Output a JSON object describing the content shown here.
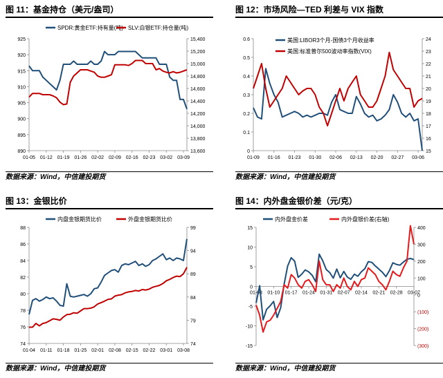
{
  "panels": [
    {
      "title": "图 11：基金持仓（美元/盎司）",
      "source": "数据来源：Wind，中信建投期货"
    },
    {
      "title": "图 12：市场风险—TED 利差与 VIX 指数",
      "source": "数据来源：Wind，中信建投期货"
    },
    {
      "title": "图 13：金银比价",
      "source": "数据来源：Wind，中信建投期货"
    },
    {
      "title": "图 14：内外盘金银价差（元/克）",
      "source": "数据来源：Wind，中信建投期货"
    }
  ],
  "chart_data": [
    {
      "type": "line",
      "title": "",
      "x": [
        "01-05",
        "01-06",
        "01-07",
        "01-08",
        "01-09",
        "01-12",
        "01-13",
        "01-14",
        "01-15",
        "01-16",
        "01-19",
        "01-20",
        "01-21",
        "01-22",
        "01-23",
        "01-26",
        "01-27",
        "01-28",
        "01-29",
        "01-30",
        "02-02",
        "02-03",
        "02-04",
        "02-05",
        "02-06",
        "02-09",
        "02-10",
        "02-11",
        "02-12",
        "02-13",
        "02-16",
        "02-17",
        "02-18",
        "02-19",
        "02-20",
        "02-23",
        "02-24",
        "02-25",
        "02-26",
        "02-27",
        "03-02",
        "03-03",
        "03-04",
        "03-05",
        "03-06",
        "03-09",
        "03-10"
      ],
      "xticks": [
        "01-05",
        "01-12",
        "01-19",
        "01-26",
        "02-02",
        "02-09",
        "02-16",
        "02-23",
        "03-02",
        "03-09"
      ],
      "series": [
        {
          "name": "SPDR:黄金ETF:持有量(吨)",
          "axis": "left",
          "color": "#1f4e79",
          "values": [
            916.5,
            915,
            915,
            915,
            913,
            912,
            911,
            910,
            909,
            912,
            917,
            917,
            917,
            918,
            917,
            917,
            917,
            917,
            918,
            917,
            917,
            918,
            921,
            920,
            920,
            920,
            921,
            921,
            921,
            921,
            921,
            921,
            920,
            919,
            919,
            919,
            919,
            919,
            917,
            917,
            917,
            913,
            912,
            912,
            906,
            906,
            903
          ]
        },
        {
          "name": "SLV:白银ETF:持仓量(吨)",
          "axis": "right",
          "color": "#c00000",
          "values": [
            14460,
            14520,
            14520,
            14520,
            14500,
            14500,
            14500,
            14480,
            14450,
            14380,
            14340,
            14350,
            14700,
            14800,
            14850,
            14900,
            14900,
            14900,
            14880,
            14860,
            14800,
            14780,
            14780,
            14800,
            14820,
            14980,
            14980,
            14980,
            14980,
            14970,
            15000,
            15050,
            15050,
            15050,
            15000,
            15000,
            15000,
            14900,
            14920,
            14880,
            14860,
            14850,
            14870,
            14850,
            14860,
            14880,
            14900
          ]
        }
      ],
      "yleft": {
        "min": 890,
        "max": 925,
        "ticks": [
          890,
          895,
          900,
          905,
          910,
          915,
          920,
          925
        ]
      },
      "yright": {
        "min": 13600,
        "max": 15400,
        "ticks": [
          "13,600",
          "13,800",
          "14,000",
          "14,200",
          "14,400",
          "14,600",
          "14,800",
          "15,000",
          "15,200",
          "15,400"
        ]
      }
    },
    {
      "type": "line",
      "title": "",
      "x": [
        "01-09",
        "01-12",
        "01-13",
        "01-14",
        "01-15",
        "01-16",
        "01-19",
        "01-20",
        "01-21",
        "01-22",
        "01-23",
        "01-26",
        "01-27",
        "01-28",
        "01-29",
        "01-30",
        "02-02",
        "02-03",
        "02-04",
        "02-05",
        "02-06",
        "02-09",
        "02-10",
        "02-11",
        "02-12",
        "02-13",
        "02-16",
        "02-17",
        "02-18",
        "02-19",
        "02-20",
        "02-23",
        "02-24",
        "02-25",
        "02-26",
        "02-27",
        "03-02",
        "03-03",
        "03-04",
        "03-05",
        "03-06",
        "03-09"
      ],
      "xticks": [
        "01-09",
        "01-16",
        "01-23",
        "01-30",
        "02-06",
        "02-13",
        "02-20",
        "02-27",
        "03-06"
      ],
      "series": [
        {
          "name": "美国:LIBOR3个月-国债3个月收益率",
          "axis": "left",
          "color": "#1f4e79",
          "values": [
            0.23,
            0.18,
            0.17,
            0.44,
            0.36,
            0.3,
            0.26,
            0.18,
            0.19,
            0.2,
            0.21,
            0.2,
            0.18,
            0.19,
            0.18,
            0.19,
            0.2,
            0.2,
            0.19,
            0.26,
            0.3,
            0.22,
            0.21,
            0.2,
            0.2,
            0.29,
            0.25,
            0.2,
            0.18,
            0.19,
            0.16,
            0.17,
            0.19,
            0.22,
            0.3,
            0.26,
            0.2,
            0.18,
            0.2,
            0.16,
            0.17,
            0.0
          ]
        },
        {
          "name": "美国:标准普尔500波动率指数(VIX)",
          "axis": "right",
          "color": "#c00000",
          "values": [
            20,
            21,
            22,
            20,
            18.5,
            19,
            19.5,
            20,
            21,
            20.5,
            20,
            19.5,
            19.8,
            20,
            20,
            19.5,
            18.5,
            18,
            17,
            18,
            19,
            20,
            19,
            20,
            20.5,
            21,
            19.5,
            19,
            18.5,
            18.5,
            19,
            20,
            21,
            22.9,
            21.5,
            21,
            20.5,
            20,
            20,
            18.5,
            19,
            19.2
          ]
        }
      ],
      "yleft": {
        "min": 0,
        "max": 0.6,
        "ticks": [
          "0",
          "0.1",
          "0.2",
          "0.3",
          "0.4",
          "0.5",
          "0.6"
        ]
      },
      "yright": {
        "min": 15,
        "max": 24,
        "ticks": [
          15,
          16,
          17,
          18,
          19,
          20,
          21,
          22,
          23,
          24
        ]
      }
    },
    {
      "type": "line",
      "title": "",
      "x": [
        "01-04",
        "01-05",
        "01-06",
        "01-07",
        "01-08",
        "01-11",
        "01-12",
        "01-13",
        "01-14",
        "01-15",
        "01-18",
        "01-19",
        "01-20",
        "01-21",
        "01-22",
        "01-25",
        "01-26",
        "01-27",
        "01-28",
        "01-29",
        "02-01",
        "02-02",
        "02-03",
        "02-04",
        "02-05",
        "02-08",
        "02-09",
        "02-10",
        "02-11",
        "02-12",
        "02-15",
        "02-16",
        "02-17",
        "02-18",
        "02-19",
        "02-22",
        "02-23",
        "02-24",
        "02-25",
        "02-26",
        "03-01",
        "03-02",
        "03-03",
        "03-04",
        "03-05",
        "03-08",
        "03-09"
      ],
      "xticks": [
        "01-04",
        "01-11",
        "01-18",
        "01-25",
        "02-01",
        "02-08",
        "02-15",
        "02-22",
        "03-01",
        "03-08"
      ],
      "series": [
        {
          "name": "内盘金银期货比价",
          "axis": "left",
          "color": "#1f4e79",
          "values": [
            77.5,
            79.2,
            79.4,
            79.1,
            79.3,
            79.6,
            79.4,
            79.5,
            79.1,
            78.6,
            78.5,
            81.2,
            79.7,
            79.6,
            79.7,
            79.8,
            79.9,
            79.7,
            80.0,
            80.6,
            80.7,
            81.4,
            82.2,
            82.5,
            82.8,
            82.9,
            82.6,
            83.4,
            83.6,
            83.5,
            83.7,
            83.9,
            83.4,
            83.6,
            83.3,
            83.5,
            84.0,
            84.2,
            84.5,
            84.8,
            84.1,
            84.3,
            84.0,
            84.3,
            84.2,
            84.0,
            86.6
          ]
        },
        {
          "name": "外盘金银期货比价",
          "axis": "right",
          "color": "#c00000",
          "values": [
            77.5,
            77.5,
            78.3,
            77.8,
            78.3,
            78.5,
            78.9,
            79.3,
            79.2,
            79.0,
            79.7,
            80.2,
            80.3,
            80.6,
            80.5,
            81.0,
            81.5,
            81.5,
            81.6,
            81.9,
            82.5,
            82.8,
            83.1,
            83.5,
            83.6,
            84.2,
            84.4,
            84.5,
            84.9,
            85.1,
            85.2,
            85.4,
            85.3,
            85.6,
            85.5,
            85.7,
            86.1,
            86.3,
            86.5,
            86.9,
            87.5,
            87.8,
            88.2,
            88.5,
            88.4,
            89.0,
            90.4
          ]
        }
      ],
      "yleft": {
        "min": 74,
        "max": 88,
        "ticks": [
          74,
          76,
          78,
          80,
          82,
          84,
          86,
          88
        ]
      },
      "yright": {
        "min": 74,
        "max": 99,
        "ticks": [
          74,
          79,
          84,
          89,
          94,
          99
        ]
      }
    },
    {
      "type": "line",
      "title": "",
      "x": [
        "01-03",
        "01-04",
        "01-05",
        "01-06",
        "01-07",
        "01-10",
        "01-11",
        "01-12",
        "01-13",
        "01-14",
        "01-17",
        "01-18",
        "01-19",
        "01-20",
        "01-21",
        "01-24",
        "01-25",
        "01-26",
        "01-27",
        "01-28",
        "01-31",
        "02-01",
        "02-02",
        "02-03",
        "02-04",
        "02-07",
        "02-08",
        "02-09",
        "02-10",
        "02-11",
        "02-14",
        "02-15",
        "02-16",
        "02-17",
        "02-18",
        "02-21",
        "02-22",
        "02-23",
        "02-24",
        "02-25",
        "02-28",
        "03-01",
        "03-02",
        "03-03",
        "03-04",
        "03-07"
      ],
      "xticks": [
        "01-03",
        "01-10",
        "01-17",
        "01-24",
        "01-31",
        "02-07",
        "02-14",
        "02-21",
        "02-28",
        "03-07"
      ],
      "series": [
        {
          "name": "内外盘金价差",
          "axis": "left",
          "color": "#1f4e79",
          "values": [
            -4.2,
            0.2,
            -8.5,
            -5.8,
            -4.9,
            -3.8,
            -7.9,
            -5.4,
            0.6,
            5.2,
            7.3,
            6.4,
            2.3,
            3.1,
            4.2,
            3.7,
            2.8,
            1.2,
            8.2,
            6.5,
            4.3,
            3.5,
            2.1,
            4.4,
            2.2,
            3.8,
            2.4,
            1.8,
            3.1,
            2.6,
            3.7,
            4.5,
            6.3,
            6.1,
            5.2,
            4.4,
            3.6,
            2.5,
            4.0,
            6.0,
            5.6,
            5.4,
            6.2,
            6.9,
            7.1,
            6.8
          ]
        },
        {
          "name": "内外盘银价差(右轴)",
          "axis": "right",
          "color": "#e31a1c",
          "values": [
            -60,
            -120,
            -220,
            -160,
            -150,
            -120,
            -80,
            -40,
            60,
            40,
            120,
            100,
            60,
            40,
            80,
            90,
            60,
            20,
            200,
            90,
            60,
            60,
            20,
            60,
            40,
            100,
            50,
            30,
            80,
            50,
            90,
            100,
            160,
            140,
            120,
            80,
            60,
            30,
            80,
            140,
            120,
            110,
            160,
            200,
            410,
            300
          ]
        }
      ],
      "yleft": {
        "min": -15,
        "max": 15,
        "ticks": [
          "-15",
          "-10",
          "-5",
          "0",
          "5",
          "10",
          "15"
        ]
      },
      "yright": {
        "min": -300,
        "max": 400,
        "ticks": [
          "(300)",
          "(200)",
          "(100)",
          "0",
          "100",
          "200",
          "300",
          "400"
        ]
      }
    }
  ]
}
